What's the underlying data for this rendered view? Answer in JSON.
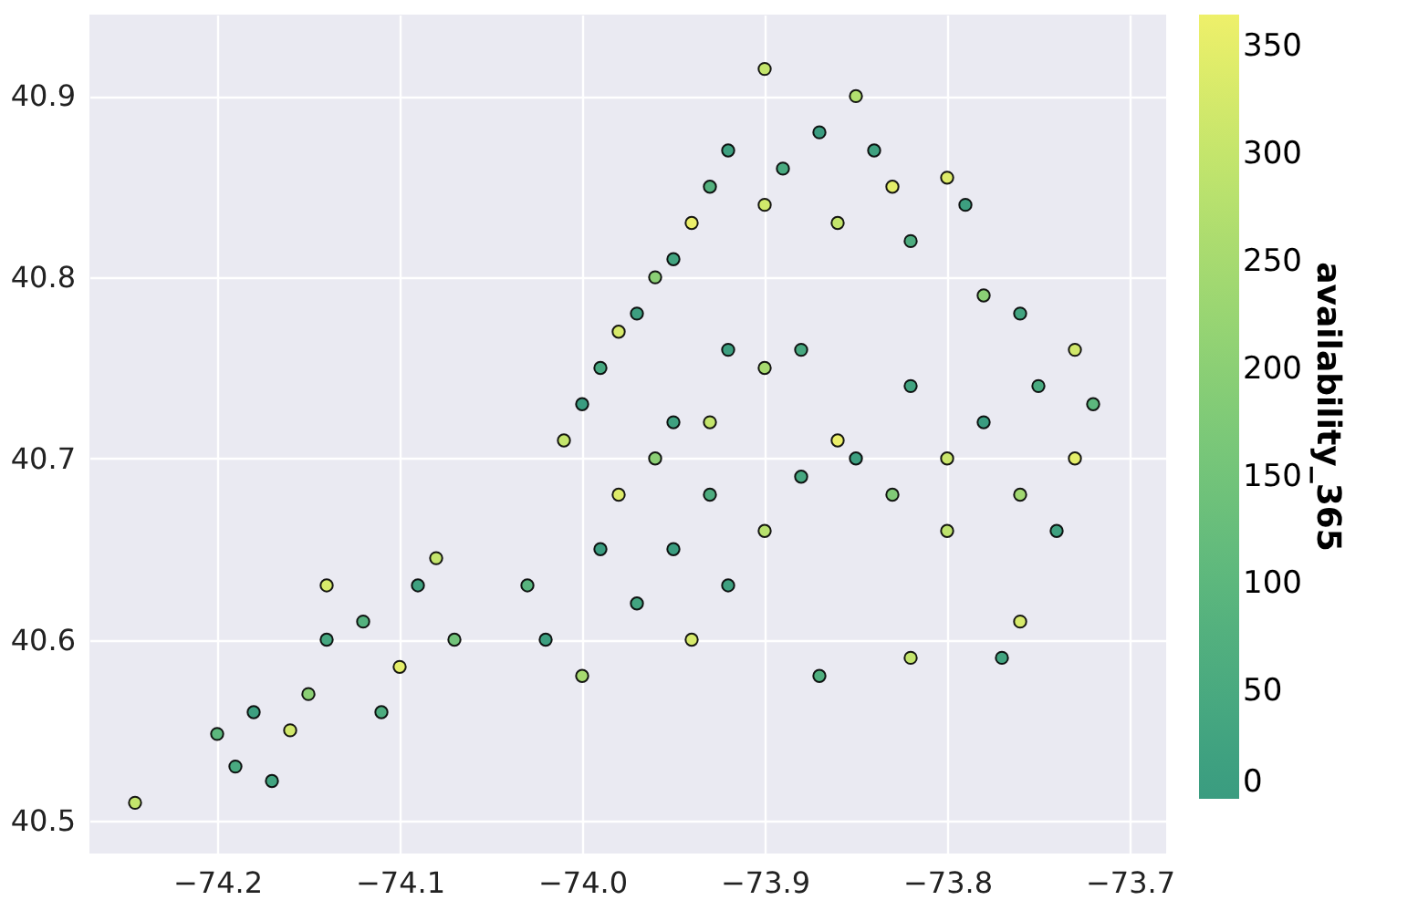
{
  "chart_data": {
    "type": "scatter",
    "clabel": "availability_365",
    "marker": "circle",
    "grid": true,
    "xlim": [
      -74.27,
      -73.68
    ],
    "ylim": [
      40.482,
      40.945
    ],
    "xticks": [
      -74.2,
      -74.1,
      {
        "value": -74.0,
        "label": "−74.0"
      },
      -73.9,
      -73.8,
      -73.7
    ],
    "yticks": [
      40.5,
      40.6,
      40.7,
      40.8,
      40.9
    ],
    "clim": [
      0,
      365
    ],
    "cticks": [
      0,
      50,
      100,
      150,
      200,
      250,
      300,
      350
    ],
    "x": [
      -74.245,
      -74.2,
      -74.19,
      -74.18,
      -74.16,
      -74.15,
      -74.14,
      -74.14,
      -74.12,
      -74.1,
      -74.09,
      -74.08,
      -74.07,
      -74.17,
      -74.11,
      -74.03,
      -74.02,
      -74.0,
      -73.99,
      -73.98,
      -73.97,
      -73.96,
      -73.95,
      -73.94,
      -73.93,
      -73.92,
      -73.9,
      -73.88,
      -73.86,
      -73.85,
      -73.83,
      -73.82,
      -73.8,
      -73.78,
      -73.76,
      -73.75,
      -73.73,
      -73.72,
      -73.74,
      -73.8,
      -73.87,
      -73.82,
      -73.77,
      -73.76,
      -73.92,
      -73.9,
      -73.88,
      -73.93,
      -73.95,
      -74.01,
      -74.0,
      -73.99,
      -73.98,
      -73.97,
      -73.96,
      -73.95,
      -73.94,
      -73.93,
      -73.92,
      -73.9,
      -73.89,
      -73.87,
      -73.85,
      -73.84,
      -73.86,
      -73.82,
      -73.83,
      -73.9,
      -73.8,
      -73.79,
      -73.78,
      -73.76,
      -73.73
    ],
    "values": [
      40.51,
      40.548,
      40.53,
      40.56,
      40.55,
      40.57,
      40.6,
      40.63,
      40.61,
      40.585,
      40.63,
      40.645,
      40.6,
      40.522,
      40.56,
      40.63,
      40.6,
      40.58,
      40.65,
      40.68,
      40.62,
      40.7,
      40.65,
      40.6,
      40.68,
      40.63,
      40.66,
      40.69,
      40.71,
      40.7,
      40.68,
      40.74,
      40.7,
      40.72,
      40.68,
      40.74,
      40.7,
      40.73,
      40.66,
      40.66,
      40.58,
      40.59,
      40.59,
      40.61,
      40.76,
      40.75,
      40.76,
      40.72,
      40.72,
      40.71,
      40.73,
      40.75,
      40.77,
      40.78,
      40.8,
      40.81,
      40.83,
      40.85,
      40.87,
      40.84,
      40.86,
      40.88,
      40.9,
      40.87,
      40.83,
      40.82,
      40.85,
      40.915,
      40.855,
      40.84,
      40.79,
      40.78,
      40.76
    ],
    "cvalues": [
      300,
      100,
      50,
      10,
      320,
      200,
      40,
      330,
      80,
      350,
      20,
      300,
      150,
      30,
      60,
      90,
      10,
      250,
      0,
      340,
      30,
      200,
      5,
      330,
      60,
      15,
      280,
      40,
      360,
      10,
      180,
      25,
      310,
      0,
      240,
      50,
      350,
      100,
      20,
      290,
      70,
      300,
      30,
      330,
      10,
      250,
      45,
      300,
      20,
      300,
      0,
      40,
      330,
      10,
      200,
      30,
      360,
      80,
      15,
      320,
      50,
      0,
      270,
      20,
      300,
      60,
      350,
      300,
      340,
      10,
      200,
      30,
      320
    ]
  }
}
